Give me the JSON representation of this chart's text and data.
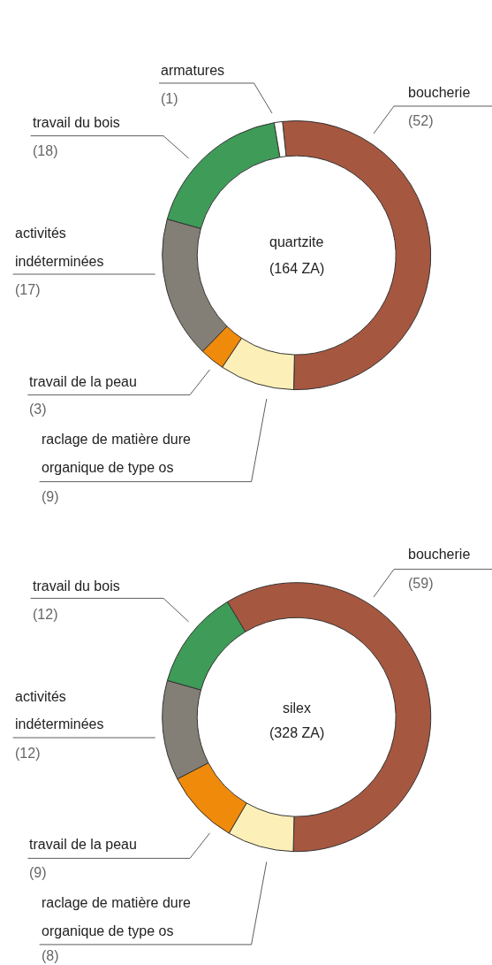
{
  "chart_data": [
    {
      "type": "donut",
      "title": "quartzite",
      "subtitle": "(164 ZA)",
      "categories": [
        "boucherie",
        "raclage de matière dure organique de type os",
        "travail de la peau",
        "activités indéterminées",
        "travail du bois",
        "armatures"
      ],
      "values": [
        52,
        9,
        3,
        17,
        18,
        1
      ],
      "value_labels": [
        "(52)",
        "(9)",
        "(3)",
        "(17)",
        "(18)",
        "(1)"
      ],
      "colors": [
        "#a65740",
        "#fcf0b8",
        "#f08a0a",
        "#847f76",
        "#3e9b58",
        "#ffffff"
      ]
    },
    {
      "type": "donut",
      "title": "silex",
      "subtitle": "(328 ZA)",
      "categories": [
        "boucherie",
        "raclage de matière dure organique de type os",
        "travail de la peau",
        "activités indéterminées",
        "travail du bois"
      ],
      "values": [
        59,
        8,
        9,
        12,
        12
      ],
      "value_labels": [
        "(59)",
        "(8)",
        "(9)",
        "(12)",
        "(12)"
      ],
      "colors": [
        "#a65740",
        "#fcf0b8",
        "#f08a0a",
        "#847f76",
        "#3e9b58"
      ]
    }
  ]
}
